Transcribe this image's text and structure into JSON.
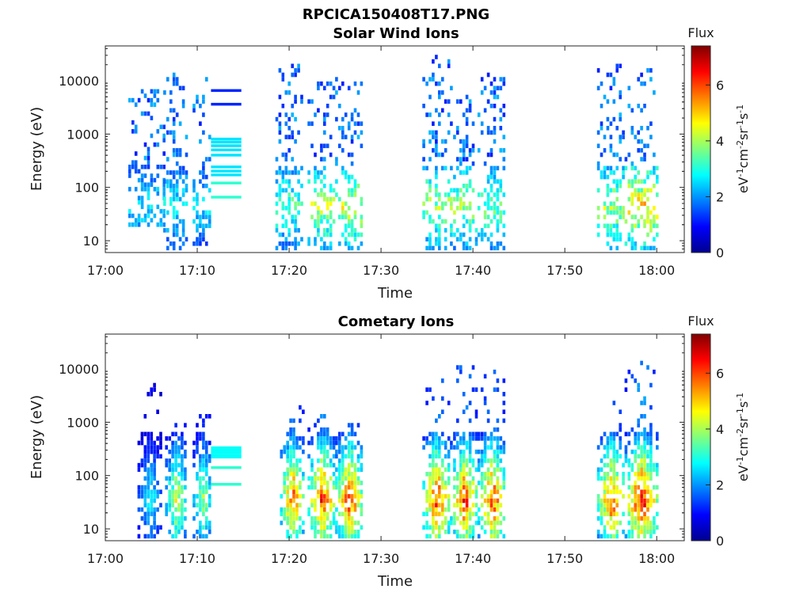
{
  "figure": {
    "title": "RPCICA150408T17.PNG"
  },
  "chart_data": [
    {
      "type": "heatmap",
      "title": "Solar Wind Ions",
      "xlabel": "Time",
      "ylabel": "Energy (eV)",
      "yscale": "log",
      "x_ticks": [
        "17:00",
        "17:10",
        "17:20",
        "17:30",
        "17:40",
        "17:50",
        "18:00"
      ],
      "x_tick_minutes": [
        0,
        10,
        20,
        30,
        40,
        50,
        60
      ],
      "xlim_minutes": [
        0,
        63
      ],
      "y_ticks": [
        10,
        100,
        1000,
        10000
      ],
      "y_tick_labels": [
        "10",
        "100",
        "1000",
        "10000"
      ],
      "ylim": [
        6,
        45000
      ],
      "colorbar": {
        "label": "Flux",
        "unit_text": "eV-1cm-2sr-1s-1",
        "range": [
          0,
          7.4
        ],
        "ticks": [
          0,
          2,
          4,
          6
        ],
        "tick_labels": [
          "0",
          "2",
          "4",
          "6"
        ]
      },
      "bursts": [
        {
          "start_min": 2.5,
          "end_min": 6.5,
          "e_top": 6500,
          "e_bottom": 20,
          "peak_flux": 3.0
        },
        {
          "start_min": 6.3,
          "end_min": 8.8,
          "e_top": 15000,
          "e_bottom": 6,
          "peak_flux": 3.2
        },
        {
          "start_min": 9.5,
          "end_min": 11.5,
          "e_top": 11000,
          "e_bottom": 6,
          "peak_flux": 3.0
        },
        {
          "start_min": 18.5,
          "end_min": 21.5,
          "e_top": 26000,
          "e_bottom": 6,
          "peak_flux": 3.8
        },
        {
          "start_min": 22.0,
          "end_min": 25.0,
          "e_top": 9500,
          "e_bottom": 6,
          "peak_flux": 4.6
        },
        {
          "start_min": 25.0,
          "end_min": 28.0,
          "e_top": 11000,
          "e_bottom": 6,
          "peak_flux": 4.8
        },
        {
          "start_min": 34.5,
          "end_min": 37.5,
          "e_top": 29000,
          "e_bottom": 6,
          "peak_flux": 4.4
        },
        {
          "start_min": 37.5,
          "end_min": 40.5,
          "e_top": 10500,
          "e_bottom": 6,
          "peak_flux": 4.4
        },
        {
          "start_min": 40.5,
          "end_min": 43.5,
          "e_top": 14000,
          "e_bottom": 6,
          "peak_flux": 4.0
        },
        {
          "start_min": 53.5,
          "end_min": 56.5,
          "e_top": 22000,
          "e_bottom": 6,
          "peak_flux": 4.6
        },
        {
          "start_min": 56.5,
          "end_min": 60.0,
          "e_top": 16000,
          "e_bottom": 6,
          "peak_flux": 5.4
        }
      ],
      "calibration_block": {
        "start_min": 11.5,
        "end_min": 14.8,
        "energies_eV": [
          6500,
          3600,
          800,
          700,
          600,
          500,
          400,
          240,
          200,
          170,
          120,
          65
        ]
      }
    },
    {
      "type": "heatmap",
      "title": "Cometary Ions",
      "xlabel": "Time",
      "ylabel": "Energy (eV)",
      "yscale": "log",
      "x_ticks": [
        "17:00",
        "17:10",
        "17:20",
        "17:30",
        "17:40",
        "17:50",
        "18:00"
      ],
      "x_tick_minutes": [
        0,
        10,
        20,
        30,
        40,
        50,
        60
      ],
      "xlim_minutes": [
        0,
        63
      ],
      "y_ticks": [
        10,
        100,
        1000,
        10000
      ],
      "y_tick_labels": [
        "10",
        "100",
        "1000",
        "10000"
      ],
      "ylim": [
        6,
        45000
      ],
      "colorbar": {
        "label": "Flux",
        "unit_text": "eV-1cm-2sr-1s-1",
        "range": [
          0,
          7.4
        ],
        "ticks": [
          0,
          2,
          4,
          6
        ],
        "tick_labels": [
          "0",
          "2",
          "4",
          "6"
        ]
      },
      "bursts": [
        {
          "start_min": 3.5,
          "end_min": 6.0,
          "e_top": 5500,
          "e_bottom": 6,
          "peak_flux": 3.0
        },
        {
          "start_min": 6.5,
          "end_min": 8.8,
          "e_top": 1100,
          "e_bottom": 6,
          "peak_flux": 4.8
        },
        {
          "start_min": 9.5,
          "end_min": 11.5,
          "e_top": 1500,
          "e_bottom": 6,
          "peak_flux": 4.4
        },
        {
          "start_min": 19.0,
          "end_min": 21.5,
          "e_top": 1900,
          "e_bottom": 6,
          "peak_flux": 6.3
        },
        {
          "start_min": 22.0,
          "end_min": 25.0,
          "e_top": 1300,
          "e_bottom": 6,
          "peak_flux": 6.6
        },
        {
          "start_min": 25.0,
          "end_min": 28.0,
          "e_top": 1200,
          "e_bottom": 6,
          "peak_flux": 6.6
        },
        {
          "start_min": 34.5,
          "end_min": 37.5,
          "e_top": 9000,
          "e_bottom": 6,
          "peak_flux": 6.6
        },
        {
          "start_min": 37.5,
          "end_min": 40.5,
          "e_top": 11000,
          "e_bottom": 6,
          "peak_flux": 6.6
        },
        {
          "start_min": 40.5,
          "end_min": 43.5,
          "e_top": 12500,
          "e_bottom": 6,
          "peak_flux": 6.6
        },
        {
          "start_min": 53.5,
          "end_min": 56.5,
          "e_top": 3000,
          "e_bottom": 6,
          "peak_flux": 6.4
        },
        {
          "start_min": 56.5,
          "end_min": 60.0,
          "e_top": 13000,
          "e_bottom": 6,
          "peak_flux": 7.1
        }
      ],
      "calibration_block": {
        "start_min": 11.5,
        "end_min": 14.8,
        "energies_eV": [
          330,
          300,
          270,
          240,
          220,
          140,
          68
        ]
      }
    }
  ]
}
